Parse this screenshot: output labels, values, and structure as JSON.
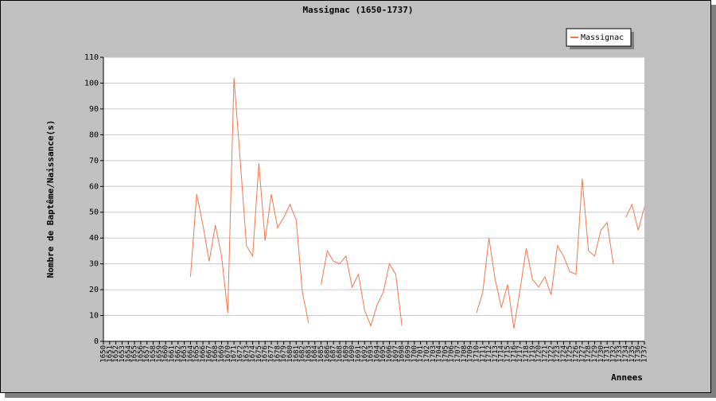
{
  "chart_data": {
    "type": "line",
    "title": "Massignac (1650-1737)",
    "x_label": "Annees",
    "y_label": "Nombre de Baptême/Naissance(s)",
    "categories": [
      "1650",
      "1651",
      "1652",
      "1653",
      "1654",
      "1655",
      "1656",
      "1657",
      "1658",
      "1659",
      "1660",
      "1661",
      "1662",
      "1663",
      "1664",
      "1665",
      "1666",
      "1667",
      "1668",
      "1669",
      "1670",
      "1671",
      "1672",
      "1673",
      "1674",
      "1675",
      "1676",
      "1677",
      "1678",
      "1679",
      "1680",
      "1681",
      "1682",
      "1683",
      "1684",
      "1685",
      "1686",
      "1687",
      "1688",
      "1689",
      "1690",
      "1691",
      "1692",
      "1693",
      "1694",
      "1695",
      "1696",
      "1697",
      "1698",
      "1699",
      "1700",
      "1701",
      "1702",
      "1703",
      "1704",
      "1705",
      "1706",
      "1707",
      "1708",
      "1709",
      "1710",
      "1711",
      "1712",
      "1713",
      "1714",
      "1715",
      "1716",
      "1717",
      "1718",
      "1719",
      "1720",
      "1721",
      "1722",
      "1723",
      "1724",
      "1725",
      "1726",
      "1727",
      "1728",
      "1729",
      "1730",
      "1731",
      "1732",
      "1733",
      "1734",
      "1735",
      "1736",
      "1737"
    ],
    "series": [
      {
        "name": "Massignac",
        "color": "#f07850",
        "values": [
          null,
          null,
          null,
          null,
          null,
          null,
          null,
          null,
          null,
          null,
          null,
          null,
          null,
          null,
          25,
          57,
          45,
          31,
          45,
          33,
          11,
          102,
          70,
          37,
          33,
          69,
          39,
          57,
          44,
          48,
          53,
          47,
          19,
          7,
          null,
          22,
          35,
          31,
          30,
          33,
          21,
          26,
          12,
          6,
          14,
          19,
          30,
          26,
          6,
          null,
          null,
          null,
          null,
          null,
          null,
          null,
          null,
          null,
          null,
          null,
          11,
          19,
          40,
          24,
          13,
          22,
          5,
          20,
          36,
          24,
          21,
          25,
          18,
          37,
          33,
          27,
          26,
          63,
          35,
          33,
          43,
          46,
          30,
          null,
          48,
          53,
          43,
          52
        ]
      }
    ],
    "ylim": [
      0,
      110
    ],
    "yticks": [
      0,
      10,
      20,
      30,
      40,
      50,
      60,
      70,
      80,
      90,
      100,
      110
    ],
    "grid": true,
    "legend": "top-right"
  }
}
